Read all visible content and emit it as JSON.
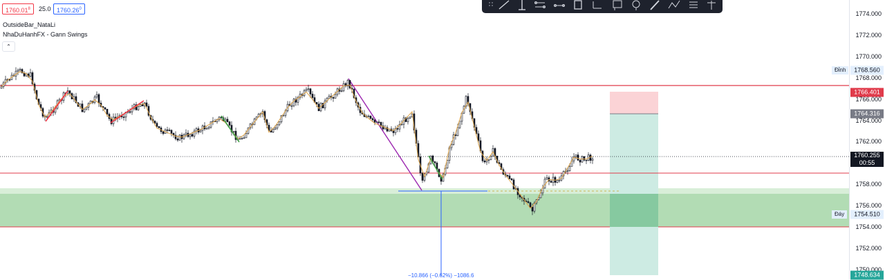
{
  "header": {
    "bid": "1760.01",
    "bid_sup": "8",
    "spread": "25.0",
    "ask": "1760.26",
    "ask_sup": "0",
    "collapse_icon": "chevron-up-icon"
  },
  "indicators": [
    "OutsideBar_NataLi",
    "NhaDuHanhFX - Gann Swings"
  ],
  "price_axis": {
    "ticks": [
      "1774.000",
      "1772.000",
      "1770.000",
      "1768.000",
      "1766.000",
      "1764.000",
      "1762.000",
      "1760.000",
      "1758.000",
      "1756.000",
      "1754.000",
      "1752.000",
      "1750.000"
    ],
    "tick_values": [
      1774,
      1772,
      1770,
      1768,
      1766,
      1764,
      1762,
      1760,
      1758,
      1756,
      1754,
      1752,
      1750
    ],
    "labels": {
      "high_tag": "Đỉnh",
      "high_value": "1768.560",
      "high_price": 1768.56,
      "resistance": "1766.401",
      "resistance_price": 1766.401,
      "entry": "1764.316",
      "entry_price": 1764.316,
      "current": "1760.255",
      "current_price": 1760.255,
      "countdown": "00:55",
      "low_tag": "Đáy",
      "low_value": "1754.510",
      "low_price": 1754.51,
      "target": "1748.634",
      "target_price": 1748.634
    }
  },
  "measure": {
    "label": "−10.866 (−0.62%) −1086.6"
  },
  "toolbar": {
    "tools": [
      "dots-grip-icon",
      "trend-line-icon",
      "vertical-line-icon",
      "parallel-channel-icon",
      "horizontal-ray-icon",
      "rectangle-icon",
      "ray-icon",
      "flag-icon",
      "pin-icon",
      "brush-icon",
      "path-icon",
      "stack-icon",
      "anchor-icon"
    ]
  },
  "colors": {
    "bull": "#131722",
    "bear": "#131722",
    "red_line": "#e03b4b",
    "green_zone": "#a5d6a7",
    "purple": "#9c27b0",
    "gold": "#e0a64b",
    "swing_red": "#f23645",
    "swing_green": "#43a047",
    "short_risk": "#fbd3d6",
    "short_reward": "#cdebe3",
    "current_bg": "#131722",
    "target_bg": "#26a69a"
  }
}
